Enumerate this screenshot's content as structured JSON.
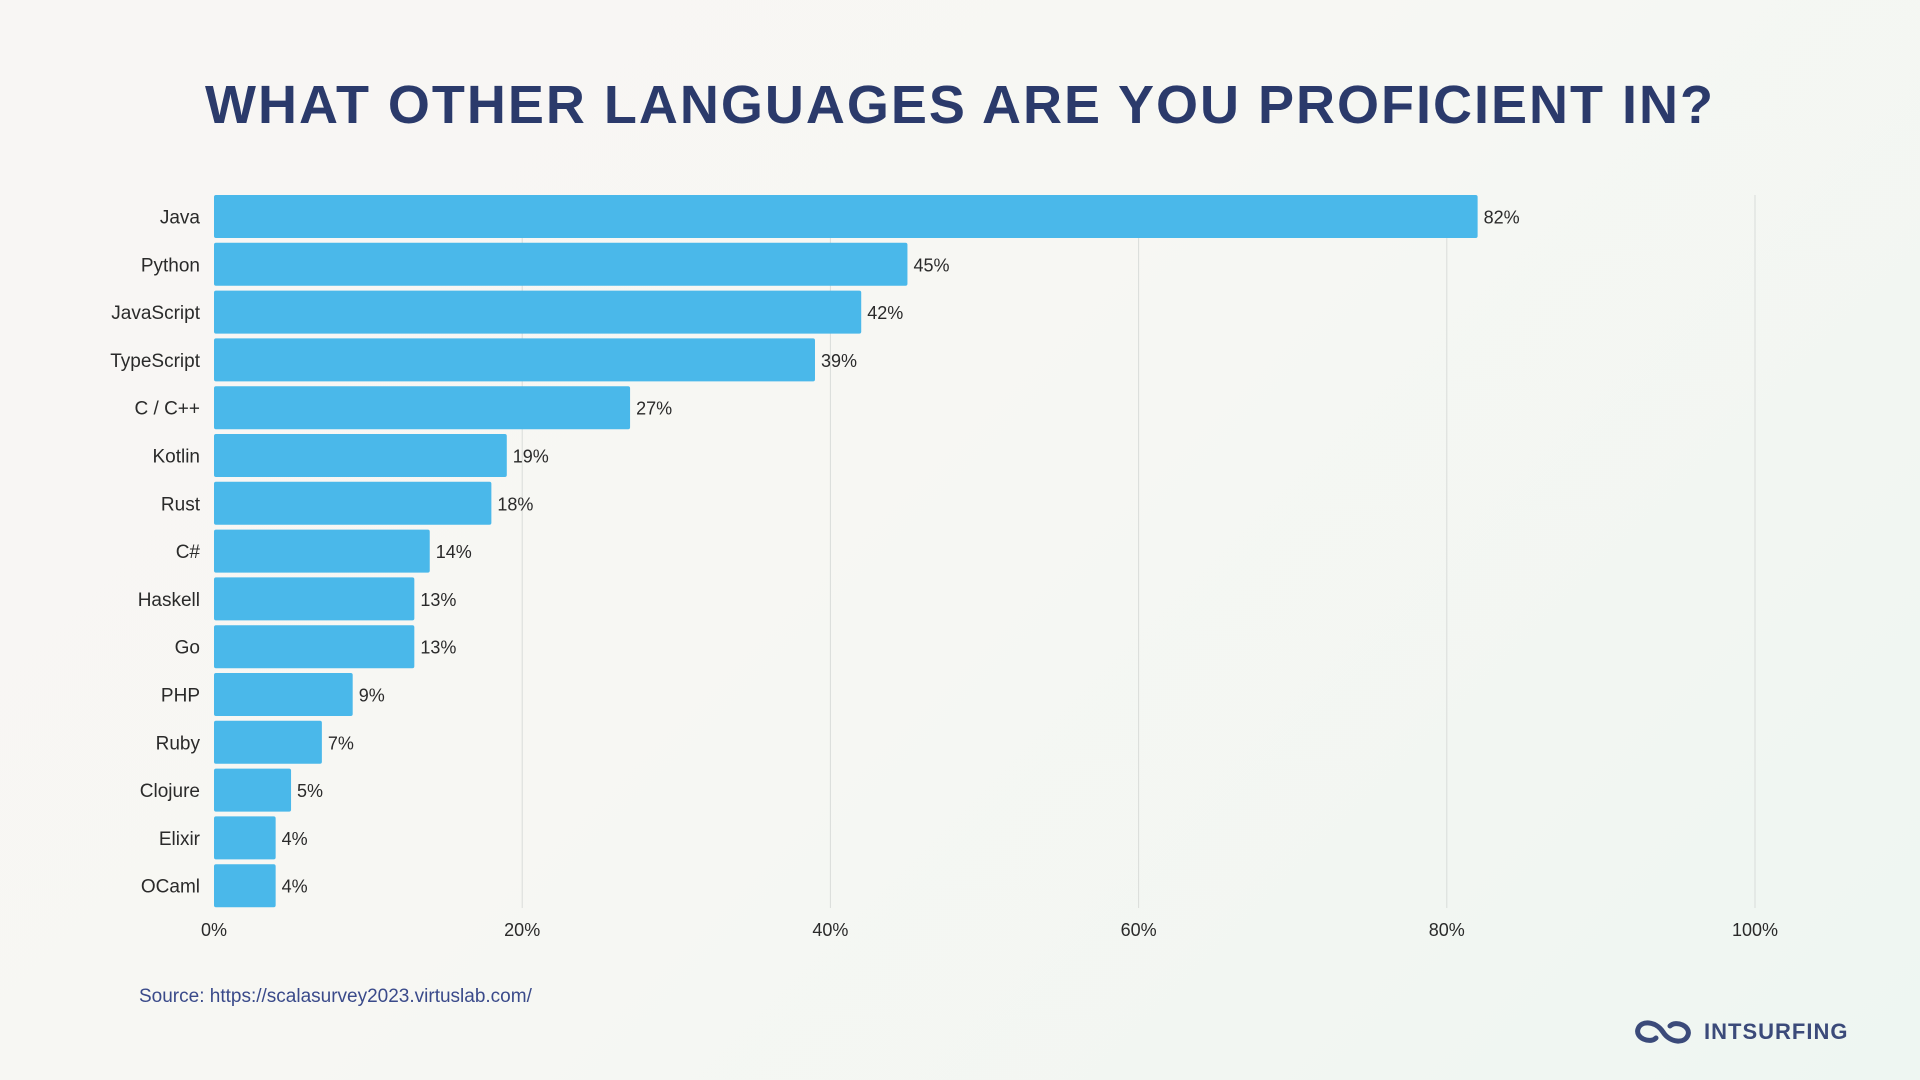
{
  "chart_data": {
    "type": "bar",
    "orientation": "horizontal",
    "title": "WHAT OTHER LANGUAGES ARE YOU PROFICIENT IN?",
    "categories": [
      "Java",
      "Python",
      "JavaScript",
      "TypeScript",
      "C / C++",
      "Kotlin",
      "Rust",
      "C#",
      "Haskell",
      "Go",
      "PHP",
      "Ruby",
      "Clojure",
      "Elixir",
      "OCaml"
    ],
    "values": [
      82,
      45,
      42,
      39,
      27,
      19,
      18,
      14,
      13,
      13,
      9,
      7,
      5,
      4,
      4
    ],
    "value_labels": [
      "82%",
      "45%",
      "42%",
      "39%",
      "27%",
      "19%",
      "18%",
      "14%",
      "13%",
      "13%",
      "9%",
      "7%",
      "5%",
      "4%",
      "4%"
    ],
    "xlim": [
      0,
      100
    ],
    "x_ticks": [
      0,
      20,
      40,
      60,
      80,
      100
    ],
    "x_tick_labels": [
      "0%",
      "20%",
      "40%",
      "60%",
      "80%",
      "100%"
    ],
    "grid": true,
    "legend": "none",
    "bar_color": "#4ab8ea",
    "grid_color": "#d9dcd9"
  },
  "source": "Source: https://scalasurvey2023.virtuslab.com/",
  "logo": {
    "text": "INTSURFING",
    "icon": "infinity-link-icon",
    "color": "#3b4a7a"
  },
  "colors": {
    "title": "#2b3a6b",
    "background": "#f7f7f3"
  }
}
